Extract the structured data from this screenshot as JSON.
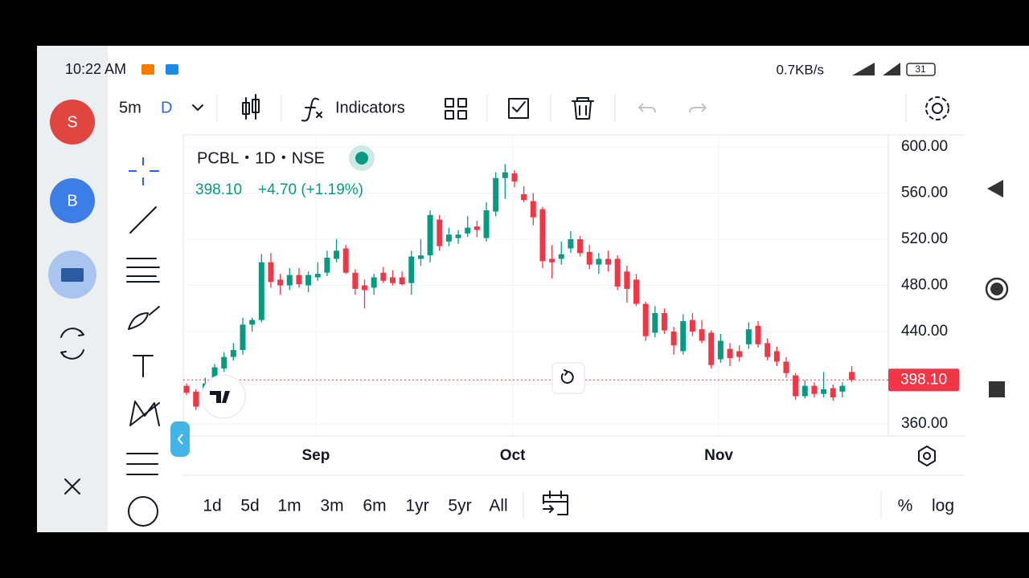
{
  "status_bar": {
    "time": "10:22 AM",
    "speed": "0.7KB/s",
    "battery": "31"
  },
  "sidebar": {
    "avatars": [
      "S",
      "B"
    ]
  },
  "toolbar": {
    "interval": "5m",
    "chart_interval": "D",
    "indicators": "Indicators"
  },
  "chart_data": {
    "type": "candlestick",
    "legend": {
      "symbol": "PCBL・1D・NSE",
      "price": "398.10",
      "change": "+4.70 (+1.19%)"
    },
    "colors": {
      "up": "#089981",
      "down": "#f23645"
    },
    "open": [
      393,
      388,
      385,
      400,
      408,
      418,
      424,
      446,
      450,
      500,
      485,
      480,
      489,
      480,
      487,
      491,
      503,
      512,
      491,
      480,
      478,
      491,
      487,
      487,
      482,
      503,
      506,
      537,
      518,
      521,
      525,
      531,
      521,
      544,
      573,
      577,
      559,
      553,
      546,
      503,
      503,
      512,
      520,
      509,
      498,
      503,
      503,
      492,
      485,
      464,
      439,
      456,
      440,
      423,
      450,
      442,
      439,
      416,
      425,
      423,
      429,
      445,
      430,
      423,
      414,
      402,
      384,
      393,
      386,
      391,
      388,
      405
    ],
    "high": [
      395,
      390,
      400,
      412,
      422,
      430,
      452,
      452,
      507,
      508,
      490,
      495,
      495,
      492,
      500,
      510,
      520,
      515,
      494,
      485,
      490,
      496,
      493,
      492,
      510,
      520,
      545,
      541,
      530,
      528,
      540,
      536,
      552,
      578,
      585,
      580,
      566,
      560,
      548,
      515,
      518,
      527,
      523,
      515,
      508,
      510,
      506,
      497,
      490,
      466,
      462,
      460,
      444,
      455,
      456,
      450,
      441,
      438,
      430,
      428,
      448,
      449,
      434,
      427,
      418,
      404,
      398,
      396,
      405,
      394,
      396,
      410
    ],
    "low": [
      385,
      372,
      380,
      398,
      405,
      415,
      420,
      440,
      448,
      478,
      472,
      476,
      478,
      474,
      484,
      488,
      500,
      490,
      472,
      460,
      472,
      482,
      480,
      480,
      472,
      497,
      500,
      510,
      514,
      516,
      522,
      522,
      518,
      540,
      555,
      565,
      552,
      532,
      495,
      486,
      498,
      508,
      505,
      494,
      490,
      492,
      476,
      465,
      462,
      432,
      435,
      438,
      420,
      420,
      436,
      430,
      408,
      413,
      410,
      414,
      425,
      426,
      415,
      410,
      400,
      381,
      382,
      383,
      383,
      380,
      383,
      396
    ],
    "close": [
      387,
      375,
      395,
      409,
      418,
      424,
      446,
      450,
      500,
      483,
      480,
      489,
      481,
      489,
      490,
      504,
      510,
      491,
      477,
      476,
      487,
      484,
      482,
      481,
      505,
      506,
      541,
      514,
      524,
      524,
      530,
      528,
      545,
      573,
      578,
      570,
      554,
      539,
      501,
      500,
      507,
      520,
      508,
      498,
      503,
      498,
      479,
      477,
      464,
      436,
      456,
      441,
      428,
      449,
      440,
      432,
      411,
      432,
      417,
      418,
      442,
      429,
      418,
      414,
      404,
      384,
      393,
      386,
      390,
      383,
      393,
      398.1
    ],
    "ylim": [
      349.6,
      610.4
    ],
    "yticks": [
      {
        "value": 360,
        "label": "360.00"
      },
      {
        "value": 440,
        "label": "440.00"
      },
      {
        "value": 480,
        "label": "480.00"
      },
      {
        "value": 520,
        "label": "520.00"
      },
      {
        "value": 560,
        "label": "560.00"
      },
      {
        "value": 600,
        "label": "600.00"
      }
    ],
    "xlim": [
      -0.35,
      74.9
    ],
    "xticks": [
      {
        "value": 13.8,
        "label": "Sep"
      },
      {
        "value": 34.8,
        "label": "Oct"
      },
      {
        "value": 56.8,
        "label": "Nov"
      }
    ],
    "last_price": {
      "value": 398.1,
      "label": "398.10"
    },
    "grid": true
  },
  "range_bar": {
    "ranges": [
      "1d",
      "5d",
      "1m",
      "3m",
      "6m",
      "1yr",
      "5yr",
      "All"
    ],
    "percent": "%",
    "log": "log"
  }
}
